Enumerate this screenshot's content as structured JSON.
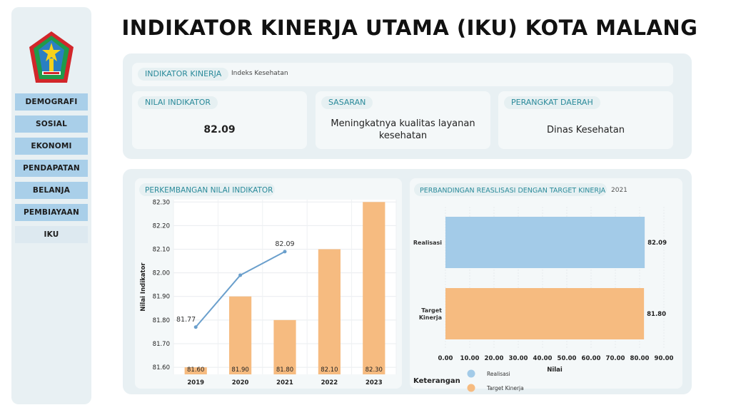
{
  "header": {
    "title": "INDIKATOR KINERJA UTAMA (IKU) KOTA MALANG"
  },
  "sidebar": {
    "logo_icon": "malang-city-emblem-icon",
    "items": [
      {
        "label": "DEMOGRAFI",
        "active": false
      },
      {
        "label": "SOSIAL",
        "active": false
      },
      {
        "label": "EKONOMI",
        "active": false
      },
      {
        "label": "PENDAPATAN",
        "active": false
      },
      {
        "label": "BELANJA",
        "active": false
      },
      {
        "label": "PEMBIAYAAN",
        "active": false
      },
      {
        "label": "IKU",
        "active": true
      }
    ]
  },
  "info": {
    "indikator_label": "INDIKATOR KINERJA",
    "indikator_value": "Indeks Kesehatan",
    "nilai_label": "NILAI INDIKATOR",
    "nilai_value": "82.09",
    "sasaran_label": "SASARAN",
    "sasaran_value": "Meningkatnya kualitas layanan kesehatan",
    "perangkat_label": "PERANGKAT DAERAH",
    "perangkat_value": "Dinas Kesehatan"
  },
  "colors": {
    "accent": "#2a8a9a",
    "bar_orange": "#f6bb80",
    "bar_blue": "#a3cbe8",
    "line_blue": "#6a9fcc",
    "panel": "#e8f0f3"
  },
  "chart_data": [
    {
      "type": "bar",
      "title": "PERKEMBANGAN NILAI INDIKATOR",
      "ylabel": "Nilai Indikator",
      "categories": [
        "2019",
        "2020",
        "2021",
        "2022",
        "2023"
      ],
      "ylim": [
        81.57,
        82.31
      ],
      "yticks": [
        "81.60",
        "81.70",
        "81.80",
        "81.90",
        "82.00",
        "82.10",
        "82.20",
        "82.30"
      ],
      "grid": true,
      "series": [
        {
          "kind": "bar",
          "values": [
            81.6,
            81.9,
            81.8,
            82.1,
            82.3
          ],
          "labels": [
            "81.60",
            "81.90",
            "81.80",
            "82.10",
            "82.30"
          ]
        },
        {
          "kind": "line",
          "values": [
            81.77,
            81.99,
            82.09,
            null,
            null
          ],
          "labels": [
            "81.77",
            "",
            "82.09",
            "",
            ""
          ]
        }
      ]
    },
    {
      "type": "bar",
      "orientation": "horizontal",
      "title": "PERBANDINGAN REASLISASI DENGAN TARGET KINERJA",
      "year": "2021",
      "xlabel": "Nilai",
      "categories": [
        "Realisasi",
        "Target Kinerja"
      ],
      "values": [
        82.09,
        81.8
      ],
      "labels": [
        "82.09",
        "81.80"
      ],
      "xlim": [
        0,
        90
      ],
      "xticks": [
        "0.00",
        "10.00",
        "20.00",
        "30.00",
        "40.00",
        "50.00",
        "60.00",
        "70.00",
        "80.00",
        "90.00"
      ],
      "legend_title": "Keterangan",
      "legend": [
        "Realisasi",
        "Target Kinerja"
      ],
      "legend_placement": "bottom"
    }
  ]
}
